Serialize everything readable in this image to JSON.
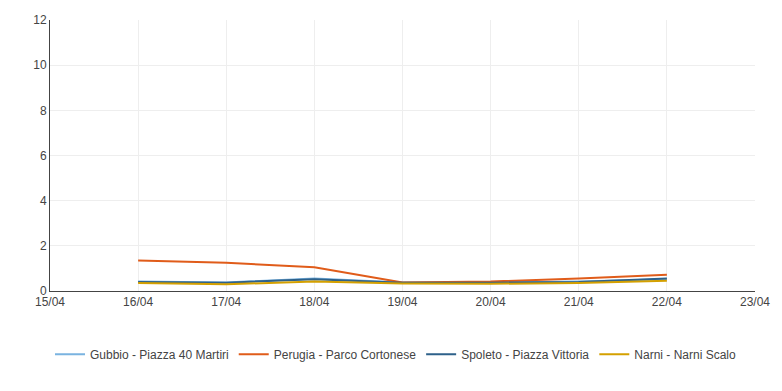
{
  "chart_data": {
    "type": "line",
    "categories": [
      "15/04",
      "16/04",
      "17/04",
      "18/04",
      "19/04",
      "20/04",
      "21/04",
      "22/04",
      "23/04"
    ],
    "series": [
      {
        "name": "Gubbio - Piazza 40 Martiri",
        "color": "#7ab3e0",
        "values": [
          null,
          0.42,
          0.38,
          0.55,
          0.38,
          0.38,
          0.42,
          0.52,
          null
        ]
      },
      {
        "name": "Perugia - Parco Cortonese",
        "color": "#e05c1a",
        "values": [
          null,
          1.35,
          1.25,
          1.05,
          0.38,
          0.42,
          0.55,
          0.72,
          null
        ]
      },
      {
        "name": "Spoleto - Piazza Vittoria",
        "color": "#2e618a",
        "values": [
          null,
          0.4,
          0.37,
          0.52,
          0.36,
          0.37,
          0.4,
          0.55,
          null
        ]
      },
      {
        "name": "Narni - Narni Scalo",
        "color": "#d4a000",
        "values": [
          null,
          0.35,
          0.3,
          0.42,
          0.33,
          0.32,
          0.35,
          0.45,
          null
        ]
      }
    ],
    "ylim": [
      0,
      12
    ],
    "yticks": [
      0,
      2,
      4,
      6,
      8,
      10,
      12
    ],
    "grid": true,
    "legend": "bottom"
  }
}
